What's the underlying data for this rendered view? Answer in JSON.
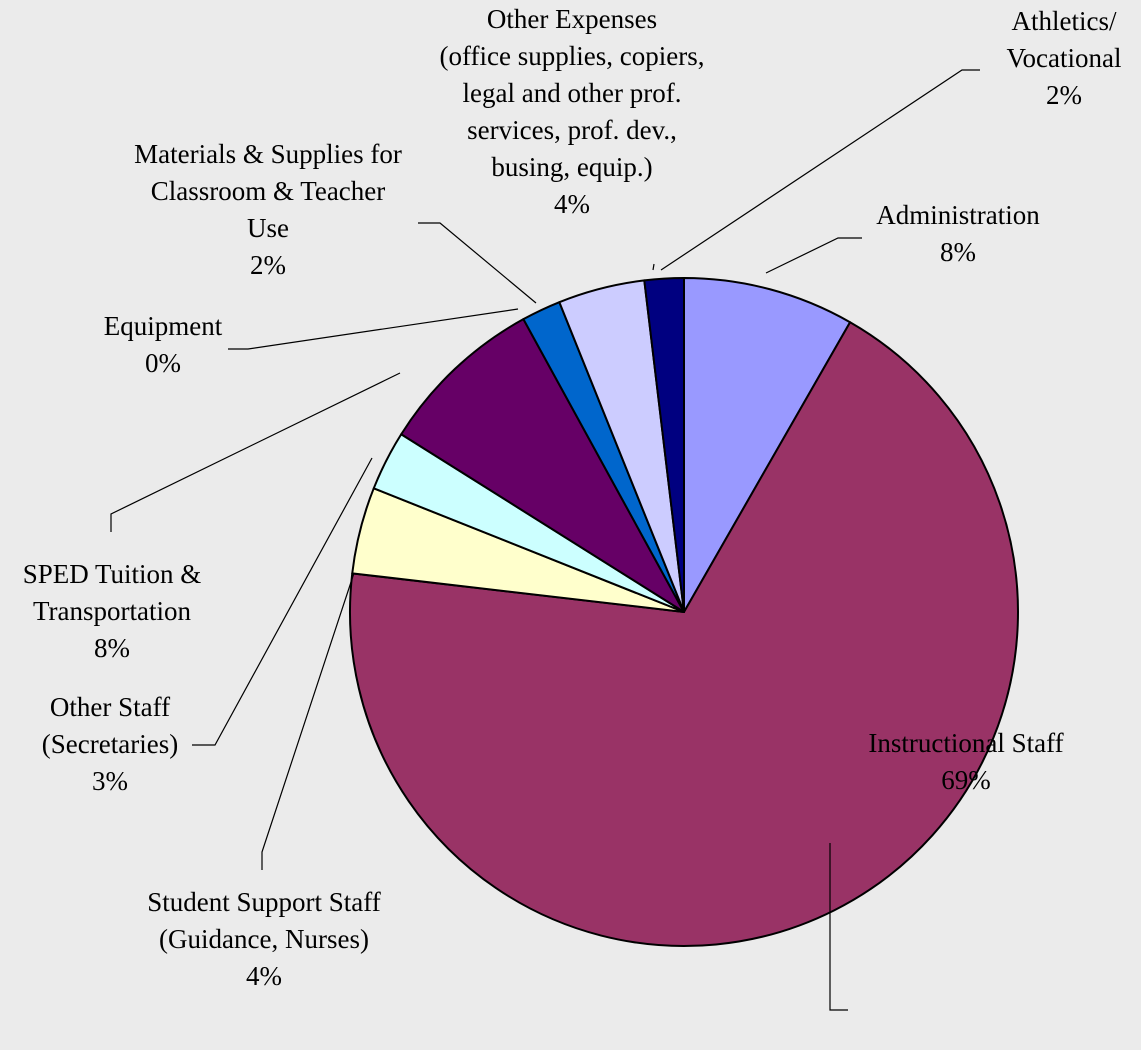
{
  "chart_data": {
    "type": "pie",
    "title": "",
    "start_angle_deg": 0,
    "direction": "clockwise",
    "slices": [
      {
        "key": "administration",
        "label_lines": [
          "Administration"
        ],
        "percent_label": "8%",
        "value": 8.3,
        "color": "#9999ff"
      },
      {
        "key": "instructional-staff",
        "label_lines": [
          "Instructional Staff"
        ],
        "percent_label": "69%",
        "value": 68.7,
        "color": "#993366"
      },
      {
        "key": "student-support-staff",
        "label_lines": [
          "Student Support Staff",
          "(Guidance, Nurses)"
        ],
        "percent_label": "4%",
        "value": 4.2,
        "color": "#ffffcc"
      },
      {
        "key": "other-staff",
        "label_lines": [
          "Other Staff",
          "(Secretaries)"
        ],
        "percent_label": "3%",
        "value": 2.9,
        "color": "#ccffff"
      },
      {
        "key": "sped-tuition-transportation",
        "label_lines": [
          "SPED Tuition &",
          "Transportation"
        ],
        "percent_label": "8%",
        "value": 8.1,
        "color": "#660066"
      },
      {
        "key": "equipment",
        "label_lines": [
          "Equipment"
        ],
        "percent_label": "0%",
        "value": 0.0,
        "color": "#0066cc"
      },
      {
        "key": "materials-supplies",
        "label_lines": [
          "Materials & Supplies for",
          "Classroom & Teacher",
          "Use"
        ],
        "percent_label": "2%",
        "value": 1.9,
        "color": "#0066cc"
      },
      {
        "key": "other-expenses",
        "label_lines": [
          "Other Expenses",
          "(office supplies, copiers,",
          "legal and other prof.",
          "services, prof. dev.,",
          "busing, equip.)"
        ],
        "percent_label": "4%",
        "value": 4.2,
        "color": "#ccccff"
      },
      {
        "key": "athletics-vocational",
        "label_lines": [
          "Athletics/",
          "Vocational"
        ],
        "percent_label": "2%",
        "value": 1.9,
        "color": "#000080"
      }
    ]
  }
}
